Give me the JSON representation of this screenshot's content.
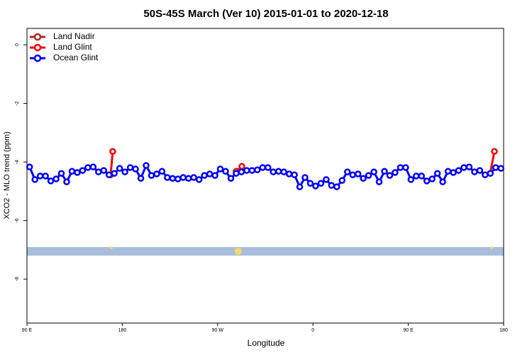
{
  "chart_data": {
    "type": "line",
    "title": "50S-45S March (Ver 10)   2015-01-01 to 2020-12-18",
    "x_label": "Longitude",
    "y_label": "XCO2 - MLO trend (ppm)",
    "xlim": [
      90,
      540
    ],
    "ylim": [
      -9.5,
      0.56
    ],
    "xticks": [
      {
        "value": 90,
        "label": "90 E"
      },
      180,
      {
        "value": 270,
        "label": "90 W"
      },
      {
        "value": 360,
        "label": "0"
      },
      {
        "value": 450,
        "label": "90 E"
      },
      {
        "value": 540,
        "label": "180"
      }
    ],
    "yticks": [
      0,
      -2,
      -4,
      -6,
      -8
    ],
    "legend": "top-left",
    "series": [
      {
        "name": "Land Nadir",
        "color": "#a52a2a",
        "x": [],
        "values": []
      },
      {
        "name": "Land Glint",
        "color": "#ff0000",
        "x": [
          169.0,
          171.0,
          230,
          287.5,
          292.9,
          400,
          527.3,
          531.3
        ],
        "values": [
          -4.44,
          -3.64,
          null,
          -4.32,
          -4.15,
          null,
          -4.39,
          -3.64
        ]
      },
      {
        "name": "Ocean Glint",
        "color": "#0000ff",
        "x": [
          92.5,
          97.5,
          102.5,
          107.5,
          112.5,
          117.5,
          122.5,
          127.5,
          132.5,
          137.5,
          142.5,
          147.5,
          152.5,
          157.5,
          162.5,
          167.5,
          172.5,
          177.5,
          182.5,
          187.5,
          192.5,
          197.5,
          202.5,
          207.5,
          212.5,
          217.5,
          222.5,
          227.5,
          232.5,
          237.5,
          242.5,
          247.5,
          252.5,
          257.5,
          262.5,
          267.5,
          272.5,
          277.5,
          282.5,
          287.5,
          292.5,
          297.5,
          302.5,
          307.5,
          312.5,
          317.5,
          322.5,
          327.5,
          332.5,
          337.5,
          342.5,
          347.5,
          352.5,
          357.5,
          362.5,
          367.5,
          372.5,
          377.5,
          382.5,
          387.5,
          392.5,
          397.5,
          402.5,
          407.5,
          412.5,
          417.5,
          422.5,
          427.5,
          432.5,
          437.5,
          442.5,
          447.5,
          452.5,
          457.5,
          462.5,
          467.5,
          472.5,
          477.5,
          482.5,
          487.5,
          492.5,
          497.5,
          502.5,
          507.5,
          512.5,
          517.5,
          522.5,
          527.5,
          532.5,
          537.5
        ],
        "values": [
          -4.17,
          -4.6,
          -4.48,
          -4.48,
          -4.65,
          -4.58,
          -4.39,
          -4.68,
          -4.32,
          -4.36,
          -4.29,
          -4.19,
          -4.17,
          -4.34,
          -4.29,
          -4.44,
          -4.39,
          -4.22,
          -4.34,
          -4.19,
          -4.24,
          -4.56,
          -4.12,
          -4.46,
          -4.41,
          -4.32,
          -4.53,
          -4.56,
          -4.58,
          -4.53,
          -4.56,
          -4.53,
          -4.6,
          -4.46,
          -4.41,
          -4.46,
          -4.24,
          -4.32,
          -4.56,
          -4.39,
          -4.34,
          -4.29,
          -4.29,
          -4.27,
          -4.19,
          -4.19,
          -4.34,
          -4.32,
          -4.34,
          -4.41,
          -4.44,
          -4.85,
          -4.53,
          -4.73,
          -4.82,
          -4.73,
          -4.6,
          -4.8,
          -4.85,
          -4.63,
          -4.34,
          -4.44,
          -4.41,
          -4.56,
          -4.46,
          -4.34,
          -4.68,
          -4.32,
          -4.46,
          -4.36,
          -4.19,
          -4.19,
          -4.6,
          -4.48,
          -4.48,
          -4.65,
          -4.58,
          -4.39,
          -4.68,
          -4.32,
          -4.36,
          -4.29,
          -4.19,
          -4.17,
          -4.34,
          -4.29,
          -4.44,
          -4.39,
          -4.19,
          -4.22
        ]
      }
    ]
  }
}
